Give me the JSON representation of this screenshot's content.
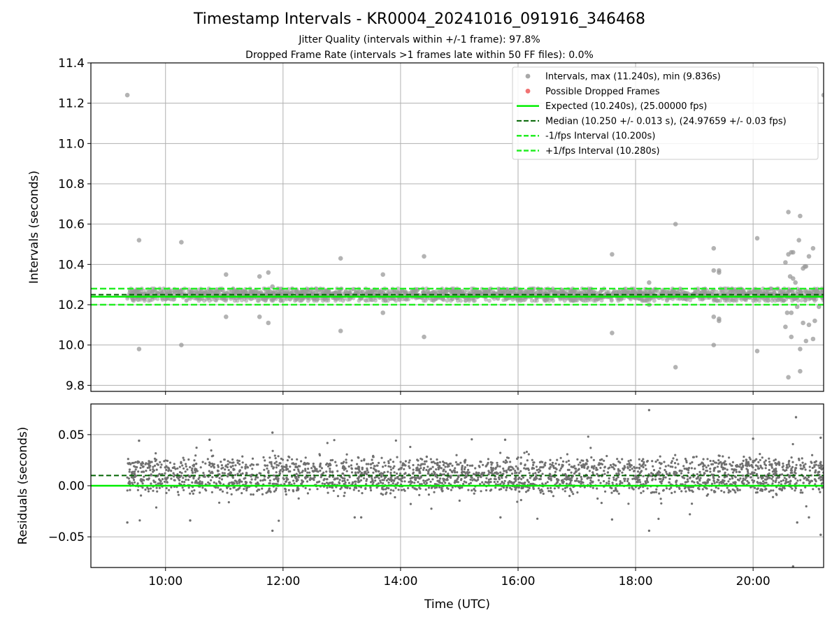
{
  "chart_data": {
    "type": "scatter",
    "title": "Timestamp Intervals - KR0004_20241016_091916_346468",
    "subtitle_jitter": "Jitter Quality (intervals within +/-1 frame): 97.8%",
    "subtitle_dropped": "Dropped Frame Rate (intervals >1 frames late within 50 FF files): 0.0%",
    "xlabel": "Time (UTC)",
    "x_unit": "hours (UTC, decimal)",
    "xlim": [
      8.73,
      21.2
    ],
    "x_ticks": [
      {
        "value": 10,
        "label": "10:00"
      },
      {
        "value": 12,
        "label": "12:00"
      },
      {
        "value": 14,
        "label": "14:00"
      },
      {
        "value": 16,
        "label": "16:00"
      },
      {
        "value": 18,
        "label": "18:00"
      },
      {
        "value": 20,
        "label": "20:00"
      }
    ],
    "grid": true,
    "legend_position": "top-right",
    "colors": {
      "intervals": "#999999",
      "dropped": "#ef5a5a",
      "expected": "#00ee00",
      "median": "#006400",
      "jitter_bounds": "#22ee22",
      "residuals": "#707070"
    },
    "top_panel": {
      "ylabel": "Intervals (seconds)",
      "ylim": [
        9.77,
        11.4
      ],
      "y_ticks": [
        {
          "value": 9.8,
          "label": "9.8"
        },
        {
          "value": 10.0,
          "label": "10.0"
        },
        {
          "value": 10.2,
          "label": "10.2"
        },
        {
          "value": 10.4,
          "label": "10.4"
        },
        {
          "value": 10.6,
          "label": "10.6"
        },
        {
          "value": 10.8,
          "label": "10.8"
        },
        {
          "value": 11.0,
          "label": "11.0"
        },
        {
          "value": 11.2,
          "label": "11.2"
        },
        {
          "value": 11.4,
          "label": "11.4"
        }
      ],
      "data_x_range": [
        9.35,
        21.2
      ],
      "series": [
        {
          "name": "intervals",
          "legend": "Intervals, max (11.240s), min (9.836s)",
          "style": "scatter",
          "typical_band": [
            10.22,
            10.28
          ],
          "outliers": [
            [
              9.35,
              11.24
            ],
            [
              9.55,
              10.52
            ],
            [
              9.55,
              9.98
            ],
            [
              10.27,
              10.51
            ],
            [
              10.27,
              10.0
            ],
            [
              11.03,
              10.35
            ],
            [
              11.03,
              10.14
            ],
            [
              11.6,
              10.34
            ],
            [
              11.6,
              10.14
            ],
            [
              11.75,
              10.36
            ],
            [
              11.75,
              10.11
            ],
            [
              11.82,
              10.29
            ],
            [
              12.98,
              10.43
            ],
            [
              12.98,
              10.07
            ],
            [
              13.7,
              10.35
            ],
            [
              13.7,
              10.16
            ],
            [
              14.4,
              10.44
            ],
            [
              14.4,
              10.04
            ],
            [
              17.6,
              10.45
            ],
            [
              17.6,
              10.06
            ],
            [
              18.23,
              10.31
            ],
            [
              18.23,
              10.2
            ],
            [
              18.68,
              10.6
            ],
            [
              18.68,
              9.89
            ],
            [
              19.33,
              10.48
            ],
            [
              19.33,
              10.37
            ],
            [
              19.33,
              10.14
            ],
            [
              19.33,
              10.0
            ],
            [
              19.42,
              10.37
            ],
            [
              19.42,
              10.36
            ],
            [
              19.42,
              10.13
            ],
            [
              19.42,
              10.12
            ],
            [
              20.07,
              10.53
            ],
            [
              20.07,
              9.97
            ],
            [
              20.55,
              10.41
            ],
            [
              20.55,
              10.09
            ],
            [
              20.6,
              10.66
            ],
            [
              20.6,
              10.45
            ],
            [
              20.6,
              9.84
            ],
            [
              20.63,
              10.34
            ],
            [
              20.65,
              10.46
            ],
            [
              20.65,
              10.04
            ],
            [
              20.68,
              10.46
            ],
            [
              20.68,
              10.33
            ],
            [
              20.72,
              10.31
            ],
            [
              20.75,
              10.19
            ],
            [
              20.78,
              10.52
            ],
            [
              20.8,
              10.64
            ],
            [
              20.8,
              9.87
            ],
            [
              20.8,
              9.98
            ],
            [
              20.85,
              10.38
            ],
            [
              20.85,
              10.11
            ],
            [
              20.9,
              10.39
            ],
            [
              20.9,
              10.02
            ],
            [
              20.95,
              10.44
            ],
            [
              20.95,
              10.1
            ],
            [
              21.02,
              10.48
            ],
            [
              21.02,
              10.03
            ],
            [
              21.05,
              10.12
            ],
            [
              21.2,
              11.24
            ],
            [
              20.58,
              10.16
            ],
            [
              20.65,
              10.16
            ],
            [
              20.88,
              10.39
            ],
            [
              21.08,
              10.27
            ],
            [
              21.12,
              10.19
            ]
          ]
        },
        {
          "name": "dropped",
          "legend": "Possible Dropped Frames",
          "style": "scatter",
          "points": []
        },
        {
          "name": "expected",
          "legend": "Expected (10.240s), (25.00000 fps)",
          "style": "solid",
          "y": 10.24
        },
        {
          "name": "median",
          "legend": "Median (10.250 +/- 0.013 s), (24.97659 +/- 0.03 fps)",
          "style": "dashed",
          "y": 10.25
        },
        {
          "name": "lower",
          "legend": "-1/fps Interval (10.200s)",
          "style": "dashed",
          "y": 10.2
        },
        {
          "name": "upper",
          "legend": "+1/fps Interval (10.280s)",
          "style": "dashed",
          "y": 10.28
        }
      ]
    },
    "bottom_panel": {
      "ylabel": "Residuals (seconds)",
      "ylim": [
        -0.08,
        0.08
      ],
      "y_ticks": [
        {
          "value": 0.05,
          "label": "0.05"
        },
        {
          "value": 0.0,
          "label": "0.00"
        },
        {
          "value": -0.05,
          "label": "−0.05"
        }
      ],
      "zero_line": 0.0,
      "median_residual": 0.01,
      "residual_levels": [
        0.0,
        0.01,
        0.02
      ],
      "residual_spread": 0.009,
      "extreme_residuals": [
        [
          18.23,
          0.074
        ],
        [
          20.73,
          0.067
        ],
        [
          11.82,
          0.052
        ],
        [
          21.15,
          0.047
        ],
        [
          20.0,
          0.046
        ],
        [
          21.15,
          -0.048
        ],
        [
          11.82,
          -0.044
        ],
        [
          18.23,
          -0.044
        ],
        [
          20.75,
          -0.036
        ],
        [
          20.68,
          -0.079
        ],
        [
          9.35,
          -0.036
        ],
        [
          10.42,
          -0.034
        ],
        [
          13.22,
          -0.031
        ],
        [
          13.33,
          -0.031
        ],
        [
          15.7,
          -0.031
        ],
        [
          17.6,
          -0.033
        ],
        [
          20.95,
          -0.031
        ],
        [
          15.78,
          0.045
        ],
        [
          10.75,
          0.045
        ],
        [
          9.55,
          0.044
        ]
      ]
    }
  }
}
